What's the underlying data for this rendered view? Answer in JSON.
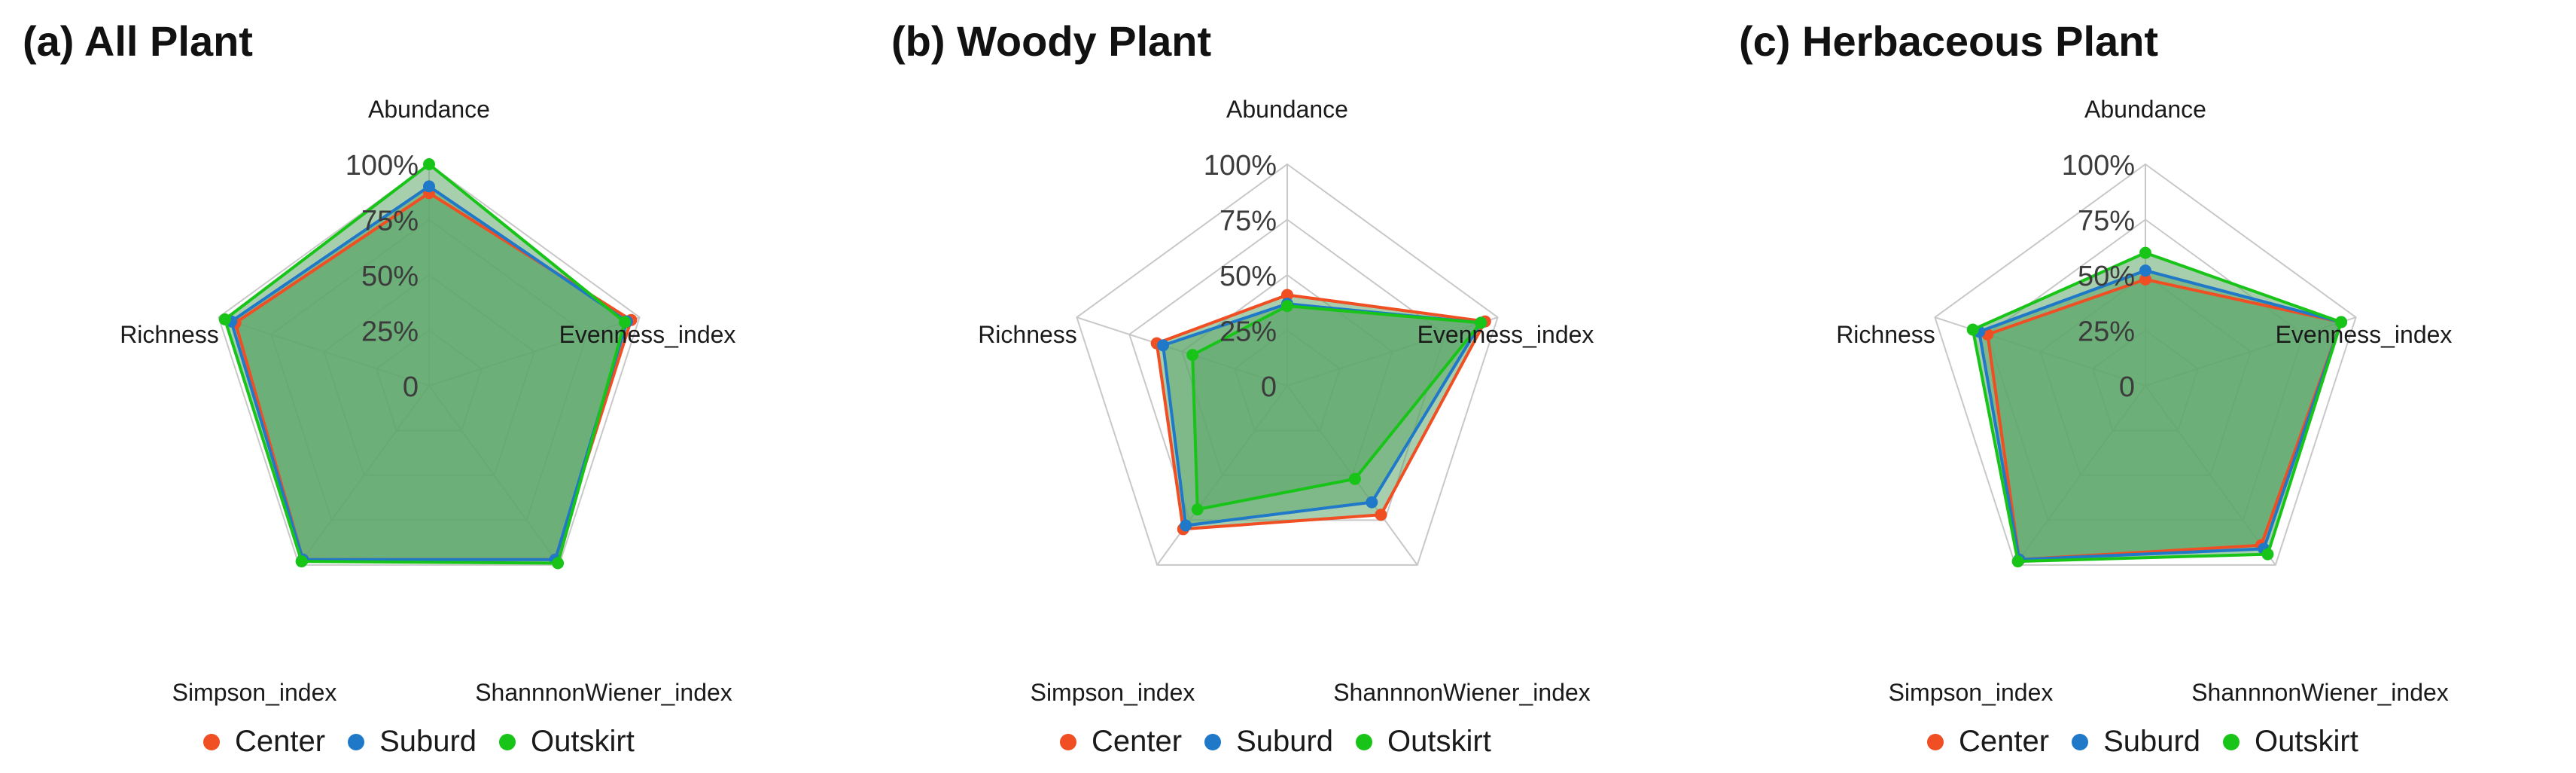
{
  "colors": {
    "Center": "#f04e23",
    "Suburd": "#1f78c8",
    "Outskirt": "#19c419",
    "fill": "#5fa86c",
    "grid": "#c8c8c8"
  },
  "chart_data": [
    {
      "type": "radar",
      "title": "(a) All Plant",
      "axes": [
        "Abundance",
        "Evenness_index",
        "ShannnonWiener_index",
        "Simpson_index",
        "Richness"
      ],
      "radial_ticks": [
        "0",
        "25%",
        "50%",
        "75%",
        "100%"
      ],
      "range": [
        0,
        100
      ],
      "legend_position": "bottom",
      "series": [
        {
          "name": "Center",
          "values": [
            87,
            96,
            97,
            97,
            92
          ]
        },
        {
          "name": "Suburd",
          "values": [
            90,
            94,
            97,
            97,
            94
          ]
        },
        {
          "name": "Outskirt",
          "values": [
            100,
            93,
            99,
            98,
            97
          ]
        }
      ]
    },
    {
      "type": "radar",
      "title": "(b) Woody Plant",
      "axes": [
        "Abundance",
        "Evenness_index",
        "ShannnonWiener_index",
        "Simpson_index",
        "Richness"
      ],
      "radial_ticks": [
        "0",
        "25%",
        "50%",
        "75%",
        "100%"
      ],
      "range": [
        0,
        100
      ],
      "legend_position": "bottom",
      "series": [
        {
          "name": "Center",
          "values": [
            41,
            94,
            72,
            80,
            62
          ]
        },
        {
          "name": "Suburd",
          "values": [
            37,
            92,
            65,
            78,
            59
          ]
        },
        {
          "name": "Outskirt",
          "values": [
            36,
            92,
            52,
            69,
            45
          ]
        }
      ]
    },
    {
      "type": "radar",
      "title": "(c) Herbaceous Plant",
      "axes": [
        "Abundance",
        "Evenness_index",
        "ShannnonWiener_index",
        "Simpson_index",
        "Richness"
      ],
      "radial_ticks": [
        "0",
        "25%",
        "50%",
        "75%",
        "100%"
      ],
      "range": [
        0,
        100
      ],
      "legend_position": "bottom",
      "series": [
        {
          "name": "Center",
          "values": [
            48,
            93,
            89,
            97,
            75
          ]
        },
        {
          "name": "Suburd",
          "values": [
            52,
            93,
            91,
            97,
            79
          ]
        },
        {
          "name": "Outskirt",
          "values": [
            60,
            93,
            94,
            98,
            82
          ]
        }
      ]
    }
  ]
}
